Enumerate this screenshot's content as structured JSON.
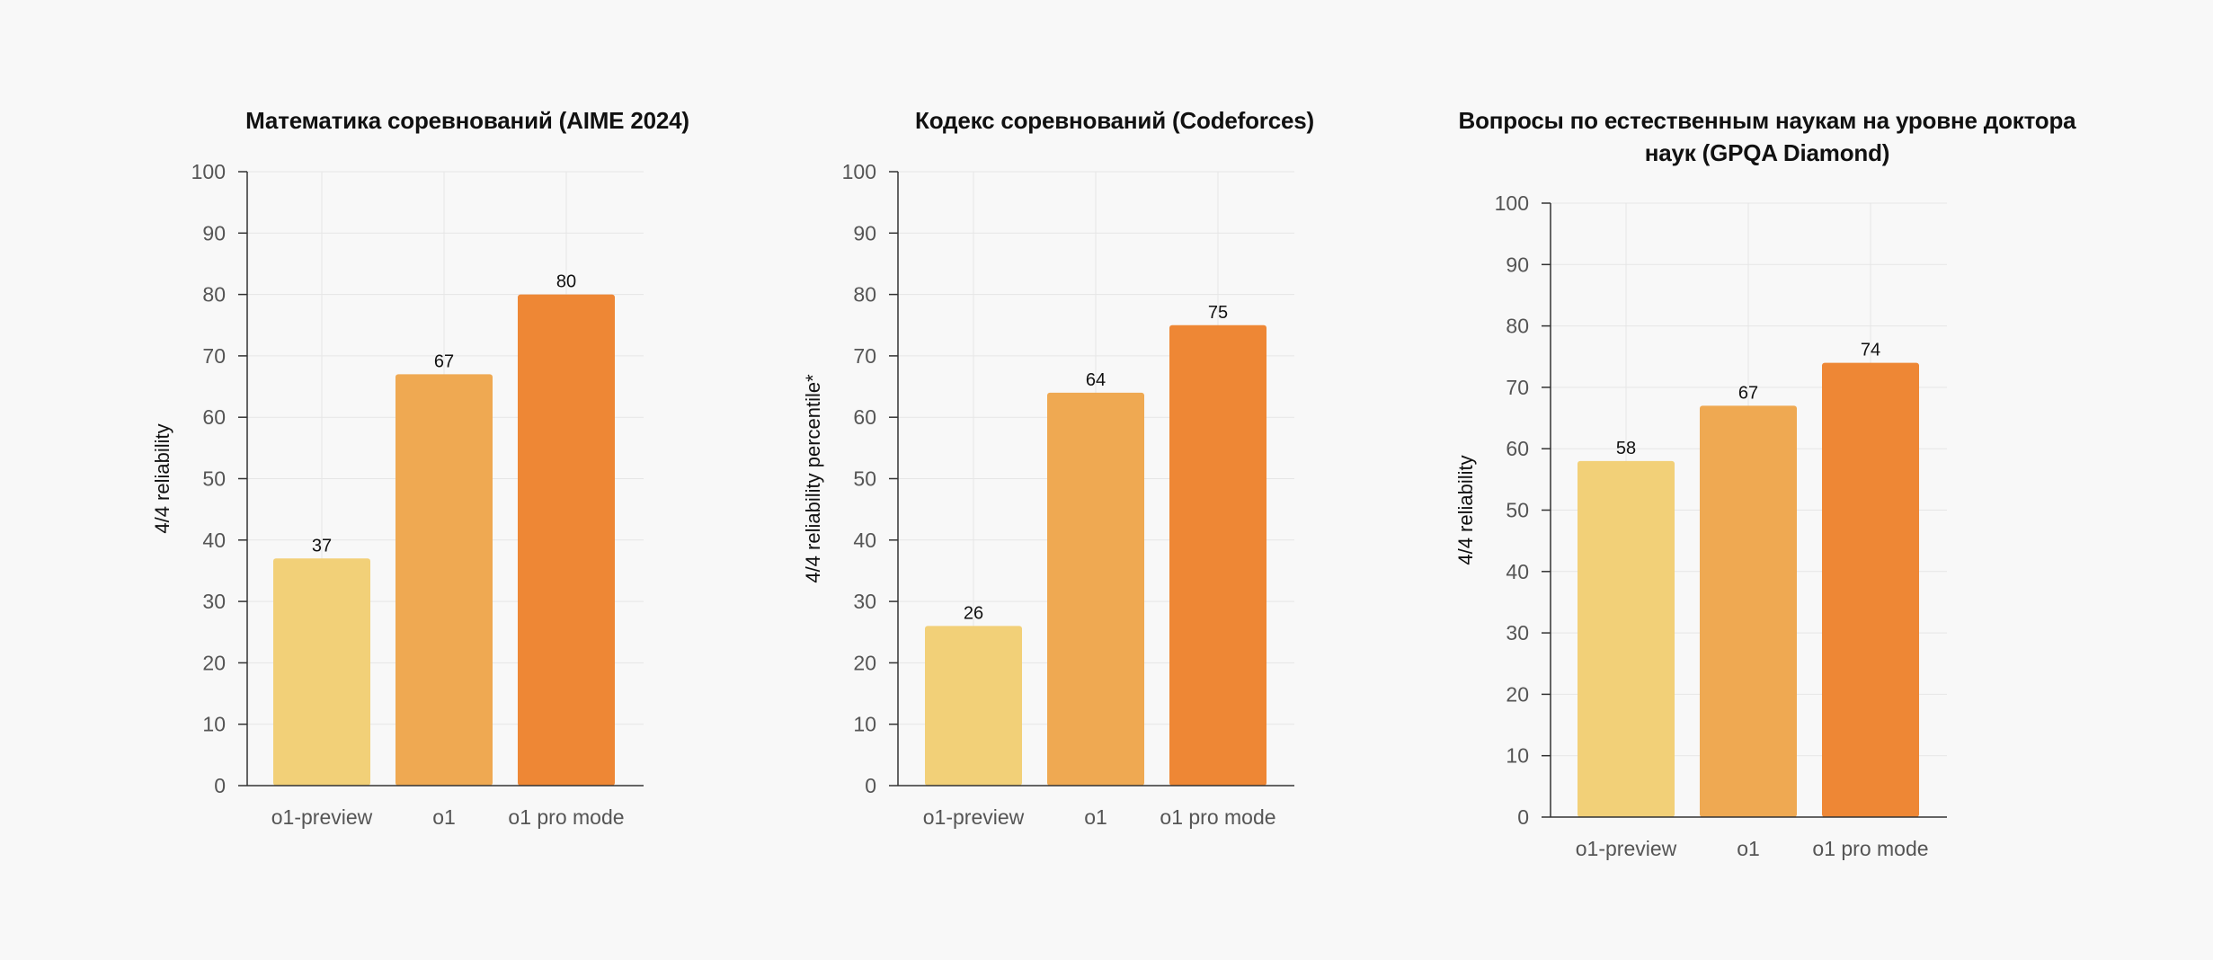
{
  "chart_data": [
    {
      "type": "bar",
      "title": "Математика соревнований (AIME 2024)",
      "ylabel": "4/4 reliability",
      "xlabel": "",
      "categories": [
        "o1-preview",
        "o1",
        "o1 pro mode"
      ],
      "values": [
        37,
        67,
        80
      ],
      "bar_colors": [
        "#f2d078",
        "#efa952",
        "#ee8735"
      ],
      "ylim": [
        0,
        100
      ],
      "yticks": [
        0,
        10,
        20,
        30,
        40,
        50,
        60,
        70,
        80,
        90,
        100
      ],
      "grid": true,
      "data_labels": [
        "37",
        "67",
        "80"
      ]
    },
    {
      "type": "bar",
      "title": "Кодекс соревнований (Codeforces)",
      "ylabel": "4/4 reliability percentile*",
      "xlabel": "",
      "categories": [
        "o1-preview",
        "o1",
        "o1 pro mode"
      ],
      "values": [
        26,
        64,
        75
      ],
      "bar_colors": [
        "#f2d078",
        "#efa952",
        "#ee8735"
      ],
      "ylim": [
        0,
        100
      ],
      "yticks": [
        0,
        10,
        20,
        30,
        40,
        50,
        60,
        70,
        80,
        90,
        100
      ],
      "grid": true,
      "data_labels": [
        "26",
        "64",
        "75"
      ]
    },
    {
      "type": "bar",
      "title": "Вопросы по естественным наукам на уровне доктора наук (GPQA Diamond)",
      "ylabel": "4/4 reliability",
      "xlabel": "",
      "categories": [
        "o1-preview",
        "o1",
        "o1 pro mode"
      ],
      "values": [
        58,
        67,
        74
      ],
      "bar_colors": [
        "#f2d078",
        "#efa952",
        "#ee8735"
      ],
      "ylim": [
        0,
        100
      ],
      "yticks": [
        0,
        10,
        20,
        30,
        40,
        50,
        60,
        70,
        80,
        90,
        100
      ],
      "grid": true,
      "data_labels": [
        "58",
        "67",
        "74"
      ]
    }
  ],
  "colors": {
    "background": "#f8f8f8",
    "axis": "#333333",
    "grid": "#e6e6e6",
    "tick_text": "#555555",
    "label_text": "#111111"
  }
}
